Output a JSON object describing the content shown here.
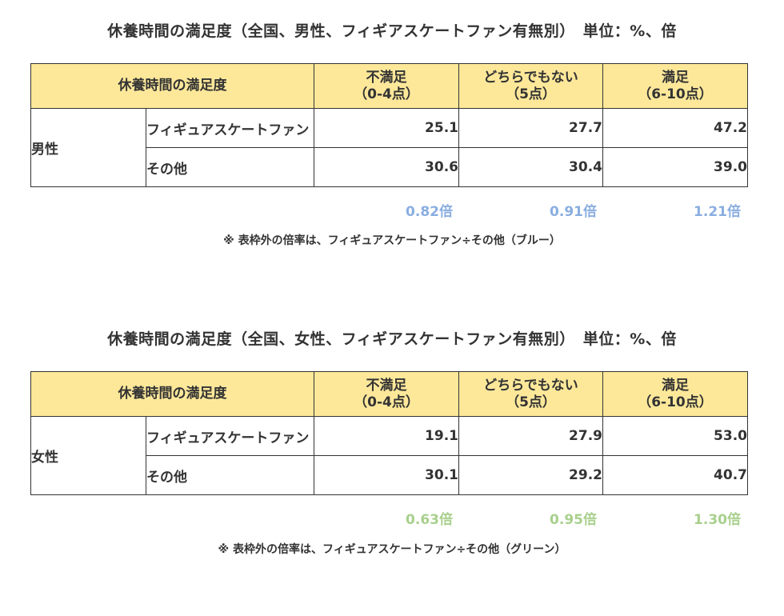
{
  "colors": {
    "header_bg": "#fde89a",
    "ratio_blue": "#8aaee0",
    "ratio_green": "#a8d08d",
    "border": "#333333"
  },
  "tables": [
    {
      "title": "休養時間の満足度（全国、男性、フィギアスケートファン有無別）　単位：%、倍",
      "header": {
        "corner": "休養時間の満足度",
        "col1": "不満足\n（0-4点）",
        "col2": "どちらでもない\n（5点）",
        "col3": "満足\n（6-10点）"
      },
      "group": "男性",
      "rows": [
        {
          "label": "フィギュアスケートファン",
          "v1": "25.1",
          "v2": "27.7",
          "v3": "47.2"
        },
        {
          "label": "その他",
          "v1": "30.6",
          "v2": "30.4",
          "v3": "39.0"
        }
      ],
      "ratios": [
        "0.82倍",
        "0.91倍",
        "1.21倍"
      ],
      "note": "※ 表枠外の倍率は、フィギュアスケートファン÷その他（ブルー）"
    },
    {
      "title": "休養時間の満足度（全国、女性、フィギアスケートファン有無別）　単位：%、倍",
      "header": {
        "corner": "休養時間の満足度",
        "col1": "不満足\n（0-4点）",
        "col2": "どちらでもない\n（5点）",
        "col3": "満足\n（6-10点）"
      },
      "group": "女性",
      "rows": [
        {
          "label": "フィギュアスケートファン",
          "v1": "19.1",
          "v2": "27.9",
          "v3": "53.0"
        },
        {
          "label": "その他",
          "v1": "30.1",
          "v2": "29.2",
          "v3": "40.7"
        }
      ],
      "ratios": [
        "0.63倍",
        "0.95倍",
        "1.30倍"
      ],
      "note": "※ 表枠外の倍率は、フィギュアスケートファン÷その他（グリーン）"
    }
  ]
}
